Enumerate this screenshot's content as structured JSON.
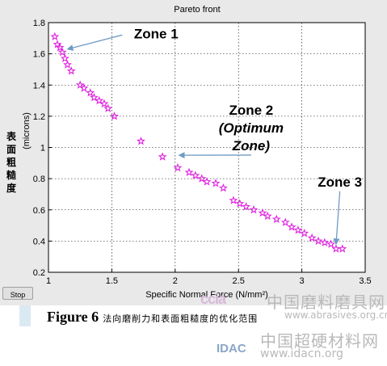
{
  "stop_button": "Stop",
  "caption": {
    "figure": "Figure 6",
    "text": "法向磨削力和表面粗糙度的优化范围"
  },
  "watermark": {
    "line1": "中国磨料磨具网",
    "line2": "www.abrasives.org.cn",
    "line3": "中国超硬材料网",
    "line4": "www.idacn.org",
    "logo1": "ccia",
    "logo2": "IDAC"
  },
  "chart_data": {
    "type": "scatter",
    "title": "Pareto front",
    "xlabel": "Specific Normal Force (N/mm²)",
    "ylabel_units": "(microns)",
    "ylabel_zh": [
      "表",
      "面",
      "粗",
      "糙",
      "度"
    ],
    "xlim": [
      1,
      3.5
    ],
    "ylim": [
      0.2,
      1.8
    ],
    "xticks": [
      "1",
      "1.5",
      "2",
      "2.5",
      "3",
      "3.5"
    ],
    "yticks": [
      "0.2",
      "0.4",
      "0.6",
      "0.8",
      "1",
      "1.2",
      "1.4",
      "1.6",
      "1.8"
    ],
    "grid": true,
    "marker": "star",
    "marker_color": "#e020e0",
    "points": [
      [
        1.05,
        1.71
      ],
      [
        1.07,
        1.66
      ],
      [
        1.09,
        1.64
      ],
      [
        1.11,
        1.61
      ],
      [
        1.13,
        1.57
      ],
      [
        1.15,
        1.53
      ],
      [
        1.18,
        1.49
      ],
      [
        1.25,
        1.4
      ],
      [
        1.28,
        1.38
      ],
      [
        1.33,
        1.35
      ],
      [
        1.36,
        1.32
      ],
      [
        1.4,
        1.3
      ],
      [
        1.44,
        1.28
      ],
      [
        1.47,
        1.25
      ],
      [
        1.52,
        1.2
      ],
      [
        1.73,
        1.04
      ],
      [
        1.9,
        0.94
      ],
      [
        2.02,
        0.87
      ],
      [
        2.11,
        0.84
      ],
      [
        2.16,
        0.82
      ],
      [
        2.21,
        0.8
      ],
      [
        2.25,
        0.78
      ],
      [
        2.32,
        0.77
      ],
      [
        2.38,
        0.74
      ],
      [
        2.46,
        0.66
      ],
      [
        2.51,
        0.64
      ],
      [
        2.56,
        0.62
      ],
      [
        2.62,
        0.6
      ],
      [
        2.69,
        0.58
      ],
      [
        2.73,
        0.56
      ],
      [
        2.8,
        0.54
      ],
      [
        2.87,
        0.52
      ],
      [
        2.92,
        0.49
      ],
      [
        2.97,
        0.47
      ],
      [
        3.02,
        0.45
      ],
      [
        3.08,
        0.42
      ],
      [
        3.13,
        0.4
      ],
      [
        3.18,
        0.39
      ],
      [
        3.23,
        0.38
      ],
      [
        3.27,
        0.35
      ],
      [
        3.32,
        0.35
      ]
    ],
    "annotations": [
      {
        "label": "Zone 1",
        "lines": [
          "Zone 1"
        ],
        "italic": false,
        "text_at": [
          1.85,
          1.7
        ],
        "arrow_to": [
          1.15,
          1.63
        ]
      },
      {
        "label": "Zone 2 (Optimum Zone)",
        "lines": [
          "Zone 2",
          "(Optimum",
          "Zone)"
        ],
        "italic": true,
        "text_at": [
          2.6,
          1.21
        ],
        "arrow_to": [
          2.03,
          0.95
        ]
      },
      {
        "label": "Zone 3",
        "lines": [
          "Zone 3"
        ],
        "italic": false,
        "text_at": [
          3.3,
          0.75
        ],
        "arrow_to": [
          3.27,
          0.38
        ]
      }
    ]
  }
}
